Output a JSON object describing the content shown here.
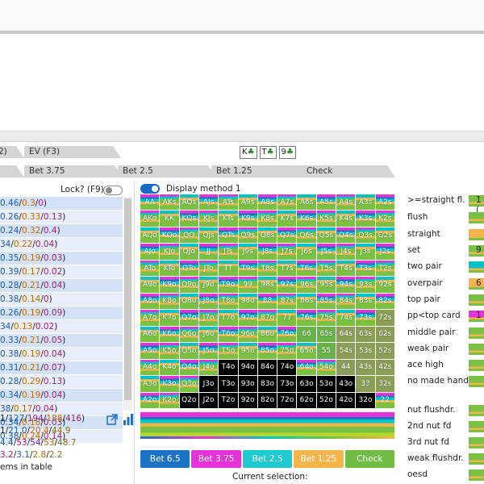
{
  "tabs_row1": [
    "2)",
    "EV (F3)"
  ],
  "board_cards": [
    {
      "rank": "K",
      "suit": "♣"
    },
    {
      "rank": "T",
      "suit": "♣"
    },
    {
      "rank": "9",
      "suit": "♣"
    }
  ],
  "tabs_row2": [
    "Bet 3.75",
    "Bet 2.5",
    "Bet 1.25",
    "Check"
  ],
  "lock_label": "Lock? (F9)",
  "display_label": "Display method 1",
  "ev_rows": [
    [
      "0.46",
      "0.3",
      "0"
    ],
    [
      "0.26",
      "0.33",
      "0.13"
    ],
    [
      "0.24",
      "0.32",
      "0.4"
    ],
    [
      "34",
      "0.22",
      "0.04"
    ],
    [
      "0.35",
      "0.19",
      "0.03"
    ],
    [
      "0.39",
      "0.17",
      "0.02"
    ],
    [
      "0.28",
      "0.21",
      "0.04"
    ],
    [
      "0.38",
      "0.14",
      "0"
    ],
    [
      "0.26",
      "0.19",
      "0.09"
    ],
    [
      "34",
      "0.13",
      "0.02"
    ],
    [
      "0.33",
      "0.21",
      "0.05"
    ],
    [
      "0.38",
      "0.19",
      "0.04"
    ],
    [
      "0.31",
      "0.21",
      "0.07"
    ],
    [
      "0.28",
      "0.29",
      "0.13"
    ],
    [
      "0.34",
      "0.19",
      "0.04"
    ],
    [
      "38",
      "0.17",
      "0.04"
    ],
    [
      "0.34",
      "0.18",
      "0.03"
    ],
    [
      "0.38",
      "0.24",
      "0.14"
    ]
  ],
  "summary": {
    "line1": [
      "1/",
      "127",
      "/",
      "194",
      "/",
      "188",
      "/",
      "416",
      ")"
    ],
    "line2": [
      "1",
      "21.0",
      "20.4",
      "44.9"
    ],
    "line3": [
      "4.4",
      "53",
      "54",
      "53",
      "48.7"
    ],
    "line4": [
      "3.2",
      "3.1",
      "2.8",
      "2.2"
    ],
    "items_label": "ems in table"
  },
  "hand_grid": [
    [
      "AA",
      "AKs",
      "AQs",
      "AJs",
      "ATs",
      "A9s",
      "A8s",
      "A7s",
      "A6s",
      "A5s",
      "A4s",
      "A3s",
      "A2s"
    ],
    [
      "AKo",
      "KK",
      "KQs",
      "KJs",
      "KTs",
      "K9s",
      "K8s",
      "K7s",
      "K6s",
      "K5s",
      "K4s",
      "K3s",
      "K2s"
    ],
    [
      "AQo",
      "KQo",
      "QQ",
      "QJs",
      "QTs",
      "Q9s",
      "Q8s",
      "Q7s",
      "Q6s",
      "Q5s",
      "Q4s",
      "Q3s",
      "Q2s"
    ],
    [
      "AJo",
      "KJo",
      "QJo",
      "JJ",
      "JTs",
      "J9s",
      "J8s",
      "J7s",
      "J6s",
      "J5s",
      "J4s",
      "J3s",
      "J2s"
    ],
    [
      "ATo",
      "KTo",
      "QTo",
      "JTo",
      "TT",
      "T9s",
      "T8s",
      "T7s",
      "T6s",
      "T5s",
      "T4s",
      "T3s",
      "T2s"
    ],
    [
      "A9o",
      "K9o",
      "Q9o",
      "J9o",
      "T9o",
      "99",
      "98s",
      "97s",
      "96s",
      "95s",
      "94s",
      "93s",
      "92s"
    ],
    [
      "A8o",
      "K8o",
      "Q8o",
      "J8o",
      "T8o",
      "98o",
      "88",
      "87s",
      "86s",
      "85s",
      "84s",
      "83s",
      "82s"
    ],
    [
      "A7o",
      "K7o",
      "Q7o",
      "J7o",
      "T7o",
      "97o",
      "87o",
      "77",
      "76s",
      "75s",
      "74s",
      "73s",
      "72s"
    ],
    [
      "A6o",
      "K6o",
      "Q6o",
      "J6o",
      "T6o",
      "96o",
      "86o",
      "76o",
      "66",
      "65s",
      "64s",
      "63s",
      "62s"
    ],
    [
      "A5o",
      "K5o",
      "Q5o",
      "J5o",
      "T5o",
      "95o",
      "85o",
      "75o",
      "65o",
      "55",
      "54s",
      "53s",
      "52s"
    ],
    [
      "A4o",
      "K4o",
      "Q4o",
      "J4o",
      "T4o",
      "94o",
      "84o",
      "74o",
      "64o",
      "54o",
      "44",
      "43s",
      "42s"
    ],
    [
      "A3o",
      "K3o",
      "Q3o",
      "J3o",
      "T3o",
      "93o",
      "83o",
      "73o",
      "63o",
      "53o",
      "43o",
      "33",
      "32s"
    ],
    [
      "A2o",
      "K2o",
      "Q2o",
      "J2o",
      "T2o",
      "92o",
      "82o",
      "72o",
      "62o",
      "52o",
      "42o",
      "32o",
      "22"
    ]
  ],
  "action_buttons": [
    {
      "label": "Bet 6.5",
      "color": "#1a73c4"
    },
    {
      "label": "Bet 3.75",
      "color": "#e533d9"
    },
    {
      "label": "Bet 2.5",
      "color": "#1fc9d0"
    },
    {
      "label": "Bet 1.25",
      "color": "#f4b54d"
    },
    {
      "label": "Check",
      "color": "#6fbd45"
    }
  ],
  "current_selection_label": "Current selection:",
  "categories": [
    {
      "label": ">=straight fl.",
      "value": "1 ("
    },
    {
      "label": "flush",
      "value": ""
    },
    {
      "label": "straight",
      "value": ""
    },
    {
      "label": "set",
      "value": "9"
    },
    {
      "label": "two pair",
      "value": ""
    },
    {
      "label": "overpair",
      "value": "6"
    },
    {
      "label": "top pair",
      "value": ""
    },
    {
      "label": "pp<top card",
      "value": "1"
    },
    {
      "label": "middle pair",
      "value": ""
    },
    {
      "label": "weak pair",
      "value": ""
    },
    {
      "label": "ace high",
      "value": ""
    },
    {
      "label": "no made hand",
      "value": ""
    },
    {
      "label": "nut flushdr.",
      "value": ""
    },
    {
      "label": "2nd nut fd",
      "value": ""
    },
    {
      "label": "3rd nut fd",
      "value": ""
    },
    {
      "label": "weak flushdr.",
      "value": ""
    },
    {
      "label": "oesd",
      "value": ""
    }
  ],
  "colors": {
    "bet65": "#1a73c4",
    "bet375": "#e533d9",
    "bet25": "#1fc9d0",
    "bet125": "#f4b54d",
    "check": "#6fbd45"
  }
}
